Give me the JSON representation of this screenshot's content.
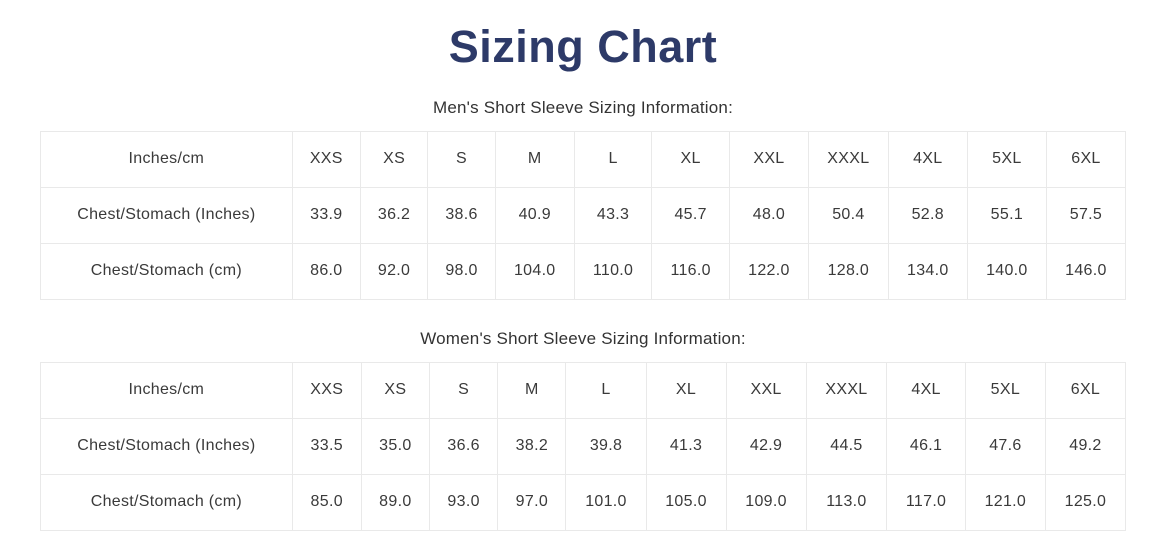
{
  "page": {
    "title": "Sizing Chart"
  },
  "colors": {
    "title_navy": "#2d3a68",
    "body_text": "#3a3a3a",
    "table_border": "#e9e9e9",
    "background": "#ffffff"
  },
  "tables": [
    {
      "caption": "Men's Short Sleeve Sizing Information:",
      "header": [
        "Inches/cm",
        "XXS",
        "XS",
        "S",
        "M",
        "L",
        "XL",
        "XXL",
        "XXXL",
        "4XL",
        "5XL",
        "6XL"
      ],
      "rows": [
        {
          "label": "Chest/Stomach (Inches)",
          "values": [
            "33.9",
            "36.2",
            "38.6",
            "40.9",
            "43.3",
            "45.7",
            "48.0",
            "50.4",
            "52.8",
            "55.1",
            "57.5"
          ]
        },
        {
          "label": "Chest/Stomach (cm)",
          "values": [
            "86.0",
            "92.0",
            "98.0",
            "104.0",
            "110.0",
            "116.0",
            "122.0",
            "128.0",
            "134.0",
            "140.0",
            "146.0"
          ]
        }
      ]
    },
    {
      "caption": "Women's Short Sleeve Sizing Information:",
      "header": [
        "Inches/cm",
        "XXS",
        "XS",
        "S",
        "M",
        "L",
        "XL",
        "XXL",
        "XXXL",
        "4XL",
        "5XL",
        "6XL"
      ],
      "rows": [
        {
          "label": "Chest/Stomach (Inches)",
          "values": [
            "33.5",
            "35.0",
            "36.6",
            "38.2",
            "39.8",
            "41.3",
            "42.9",
            "44.5",
            "46.1",
            "47.6",
            "49.2"
          ]
        },
        {
          "label": "Chest/Stomach (cm)",
          "values": [
            "85.0",
            "89.0",
            "93.0",
            "97.0",
            "101.0",
            "105.0",
            "109.0",
            "113.0",
            "117.0",
            "121.0",
            "125.0"
          ]
        }
      ]
    }
  ]
}
